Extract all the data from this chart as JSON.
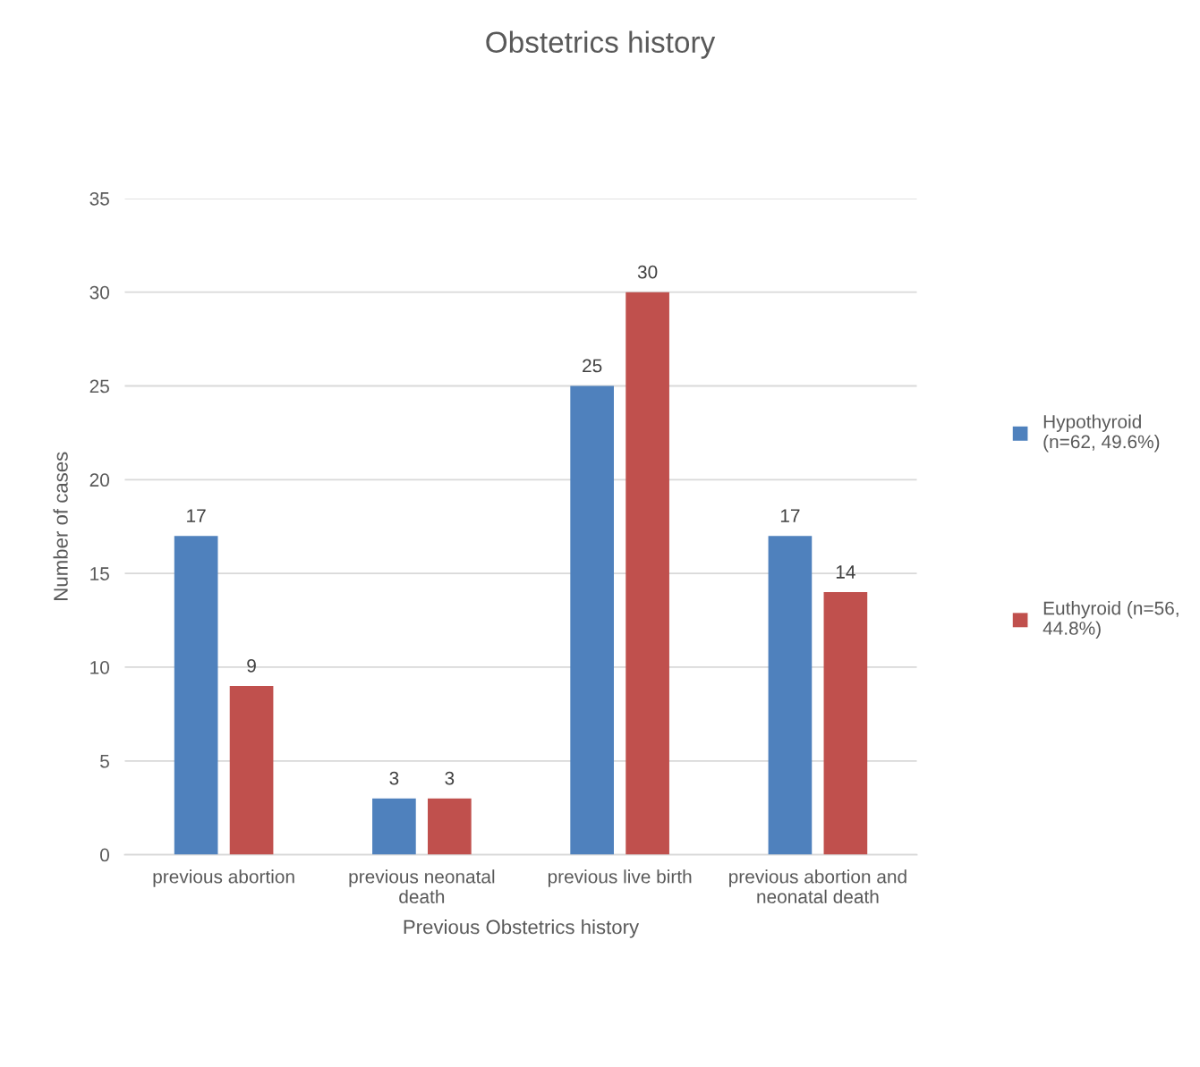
{
  "chart_data": {
    "type": "bar",
    "title": "Obstetrics history",
    "xlabel": "Previous Obstetrics history",
    "ylabel": "Number of cases",
    "categories": [
      "previous abortion",
      "previous neonatal\ndeath",
      "previous live birth",
      "previous abortion and\nneonatal death"
    ],
    "series": [
      {
        "name": "Hypothyroid\n(n=62, 49.6%)",
        "color": "#4f81bd",
        "values": [
          17,
          3,
          25,
          17
        ]
      },
      {
        "name": "Euthyroid (n=56,\n44.8%)",
        "color": "#c0504d",
        "values": [
          9,
          3,
          30,
          14
        ]
      }
    ],
    "ylim": [
      0,
      35
    ],
    "yticks": [
      0,
      5,
      10,
      15,
      20,
      25,
      30,
      35
    ],
    "grid": "y",
    "legend": "right",
    "data_labels": true
  }
}
